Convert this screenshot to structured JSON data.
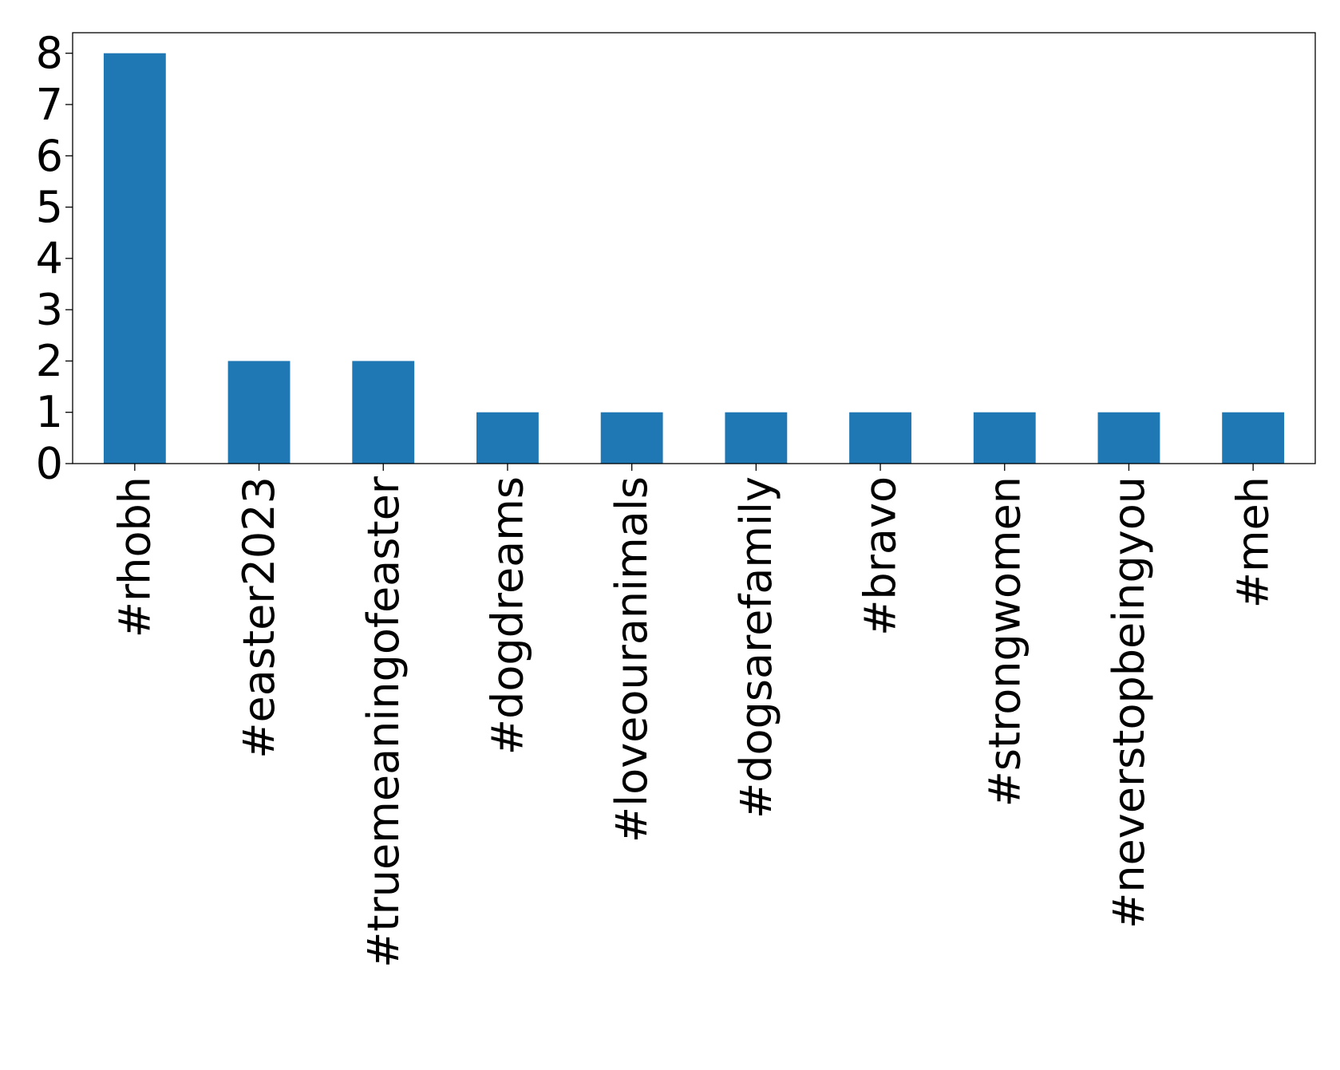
{
  "chart_data": {
    "type": "bar",
    "categories": [
      "#rhobh",
      "#easter2023",
      "#truemeaningofeaster",
      "#dogdreams",
      "#loveouranimals",
      "#dogsarefamily",
      "#bravo",
      "#strongwomen",
      "#neverstopbeingyou",
      "#meh"
    ],
    "values": [
      8,
      2,
      2,
      1,
      1,
      1,
      1,
      1,
      1,
      1
    ],
    "color": "#1f77b4",
    "ylim": [
      0,
      8.4
    ],
    "yticks": [
      0,
      1,
      2,
      3,
      4,
      5,
      6,
      7,
      8
    ],
    "grid": false
  }
}
